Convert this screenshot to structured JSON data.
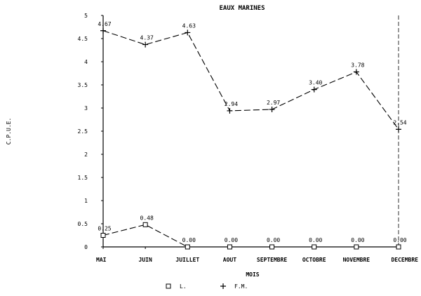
{
  "chart_data": {
    "type": "line",
    "title": "EAUX MARINES",
    "xlabel": "MOIS",
    "ylabel": "C.P.U.E.",
    "categories": [
      "MAI",
      "JUIN",
      "JUILLET",
      "AOUT",
      "SEPTEMBRE",
      "OCTOBRE",
      "NOVEMBRE",
      "DECEMBRE"
    ],
    "ylim": [
      0,
      5
    ],
    "yticks": [
      "0",
      "0.5",
      "1",
      "1.5",
      "2",
      "2.5",
      "3",
      "3.5",
      "4",
      "4.5",
      "5"
    ],
    "grid": false,
    "legend_placement": "bottom",
    "series": [
      {
        "name": "L.",
        "marker": "square",
        "values": [
          0.25,
          0.48,
          0.0,
          0.0,
          0.0,
          0.0,
          0.0,
          0.0
        ],
        "labels": [
          "0.25",
          "0.48",
          "0.00",
          "0.00",
          "0.00",
          "0.00",
          "0.00",
          "0.00"
        ]
      },
      {
        "name": "F.M.",
        "marker": "plus",
        "values": [
          4.67,
          4.37,
          4.63,
          2.94,
          2.97,
          3.4,
          3.78,
          2.54
        ],
        "labels": [
          "4.67",
          "4.37",
          "4.63",
          "2.94",
          "2.97",
          "3.40",
          "3.78",
          "2.54"
        ]
      }
    ]
  }
}
